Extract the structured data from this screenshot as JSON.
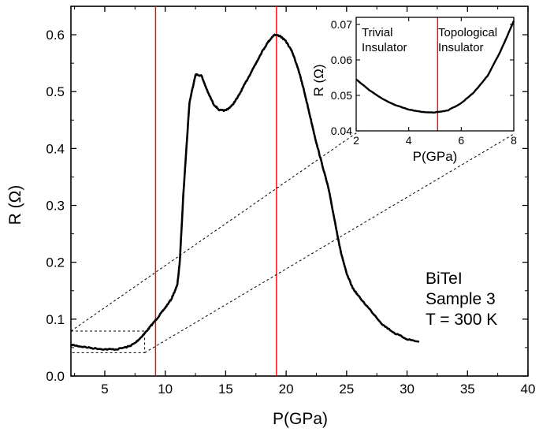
{
  "chart_data": [
    {
      "type": "line",
      "name": "main",
      "xlabel": "P(GPa)",
      "ylabel": "R (Ω)",
      "xlim": [
        2.2,
        40
      ],
      "ylim": [
        0.0,
        0.65
      ],
      "xticks": [
        5,
        10,
        15,
        20,
        25,
        30,
        35,
        40
      ],
      "xtick_labels": [
        "5",
        "10",
        "15",
        "20",
        "25",
        "30",
        "35",
        "40"
      ],
      "yticks": [
        0.0,
        0.1,
        0.2,
        0.3,
        0.4,
        0.5,
        0.6
      ],
      "ytick_labels": [
        "0.0",
        "0.1",
        "0.2",
        "0.3",
        "0.4",
        "0.5",
        "0.6"
      ],
      "series": [
        {
          "name": "BiTeI Sample 3 R(P)",
          "color": "#000000",
          "x": [
            2.2,
            3,
            4,
            5,
            6,
            7,
            7.5,
            8,
            8.5,
            9,
            9.5,
            10,
            10.5,
            11,
            11.2,
            11.5,
            12,
            12.5,
            13,
            13.5,
            14,
            14.5,
            15,
            15.5,
            16,
            16.5,
            17,
            17.5,
            18,
            18.5,
            19,
            19.5,
            20,
            20.5,
            21,
            21.5,
            22,
            22.5,
            23,
            23.5,
            24,
            24.5,
            25,
            25.5,
            26,
            27,
            28,
            29,
            30,
            31
          ],
          "y": [
            0.055,
            0.052,
            0.049,
            0.047,
            0.047,
            0.052,
            0.058,
            0.068,
            0.08,
            0.093,
            0.106,
            0.12,
            0.135,
            0.16,
            0.2,
            0.32,
            0.48,
            0.53,
            0.528,
            0.5,
            0.478,
            0.467,
            0.467,
            0.475,
            0.49,
            0.51,
            0.53,
            0.55,
            0.57,
            0.587,
            0.6,
            0.598,
            0.588,
            0.57,
            0.54,
            0.5,
            0.455,
            0.41,
            0.37,
            0.33,
            0.275,
            0.22,
            0.18,
            0.155,
            0.14,
            0.115,
            0.09,
            0.075,
            0.065,
            0.06
          ]
        }
      ],
      "vlines": [
        {
          "x": 9.2,
          "color": "#ff0000"
        },
        {
          "x": 19.2,
          "color": "#ff0000"
        }
      ],
      "zoom_box": {
        "x": [
          2.2,
          8.3
        ],
        "y": [
          0.041,
          0.079
        ]
      },
      "annotation": [
        "BiTeI",
        "Sample 3",
        "T = 300 K"
      ]
    },
    {
      "type": "line",
      "name": "inset",
      "xlabel": "P(GPa)",
      "ylabel": "R (Ω)",
      "xlim": [
        2,
        8
      ],
      "ylim": [
        0.04,
        0.072
      ],
      "xticks": [
        2,
        4,
        6,
        8
      ],
      "xtick_labels": [
        "2",
        "4",
        "6",
        "8"
      ],
      "yticks": [
        0.04,
        0.05,
        0.06,
        0.07
      ],
      "ytick_labels": [
        "0.04",
        "0.05",
        "0.06",
        "0.07"
      ],
      "series": [
        {
          "name": "zoomed R(P)",
          "color": "#000000",
          "x": [
            2.0,
            2.5,
            3.0,
            3.5,
            4.0,
            4.5,
            5.0,
            5.5,
            6.0,
            6.5,
            7.0,
            7.5,
            8.0
          ],
          "y": [
            0.0545,
            0.0515,
            0.049,
            0.0472,
            0.046,
            0.0453,
            0.0452,
            0.0458,
            0.0478,
            0.051,
            0.0555,
            0.0625,
            0.071
          ]
        }
      ],
      "vlines": [
        {
          "x": 5.1,
          "color": "#ff0000"
        }
      ],
      "region_labels": [
        {
          "lines": [
            "Trivial",
            "Insulator"
          ]
        },
        {
          "lines": [
            "Topological",
            "Insulator"
          ]
        }
      ]
    }
  ]
}
